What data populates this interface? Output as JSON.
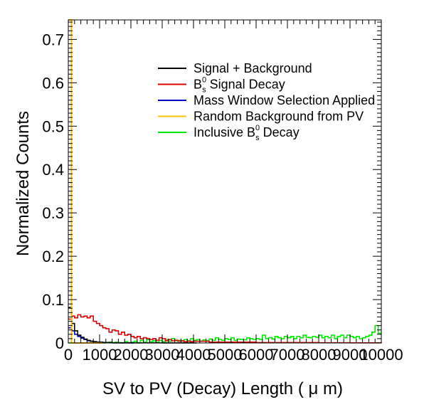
{
  "chart_data": {
    "type": "line",
    "xlabel": "SV to PV (Decay) Length ( μ m)",
    "ylabel": "Normalized Counts",
    "xlim": [
      0,
      10000
    ],
    "ylim": [
      0,
      0.745
    ],
    "xticks": [
      0,
      1000,
      2000,
      3000,
      4000,
      5000,
      6000,
      7000,
      8000,
      9000,
      10000
    ],
    "xtick_labels": [
      "0",
      "1000",
      "2000",
      "3000",
      "4000",
      "5000",
      "6000",
      "7000",
      "8000",
      "9000",
      "10000"
    ],
    "yticks": [
      0,
      0.1,
      0.2,
      0.3,
      0.4,
      0.5,
      0.6,
      0.7
    ],
    "ytick_labels": [
      "0",
      "0.1",
      "0.2",
      "0.3",
      "0.4",
      "0.5",
      "0.6",
      "0.7"
    ],
    "bin_width": 100,
    "grid": false,
    "legend_position": "top-right",
    "legend": [
      {
        "text": "Signal + Background",
        "color": "#000000"
      },
      {
        "text": "B",
        "sup": "0",
        "sub": "s",
        "rest": " Signal Decay",
        "color": "#e00000"
      },
      {
        "text": "Mass Window Selection Applied",
        "color": "#0000c8"
      },
      {
        "text": "Random Background from PV",
        "color": "#ffc000"
      },
      {
        "text": "Inclusive B",
        "sup": "0",
        "sub": "s",
        "rest": " Decay",
        "color": "#00ee00"
      }
    ],
    "series": [
      {
        "name": "Signal + Background",
        "color": "#000000",
        "x": [
          0,
          100,
          200,
          300,
          400,
          500,
          600,
          700,
          800,
          900,
          1000,
          1100,
          1200,
          1300,
          1400,
          1500,
          2000,
          3000,
          4000
        ],
        "values": [
          0.082,
          0.045,
          0.028,
          0.018,
          0.013,
          0.009,
          0.006,
          0.004,
          0.003,
          0.002,
          0.002,
          0.001,
          0.001,
          0.001,
          0.0005,
          0.0003,
          0.0002,
          0.0001,
          0.0
        ]
      },
      {
        "name": "B_s^0 Signal Decay",
        "color": "#e00000",
        "x": [
          0,
          100,
          200,
          300,
          400,
          500,
          600,
          700,
          800,
          900,
          1000,
          1100,
          1200,
          1300,
          1400,
          1500,
          1600,
          1700,
          1800,
          1900,
          2000,
          2100,
          2200,
          2300,
          2400,
          2500,
          2600,
          2700,
          2800,
          2900,
          3000,
          3100,
          3200,
          3300,
          3400,
          3500,
          3600,
          3700,
          3800,
          3900,
          4000,
          4500,
          5000,
          6000,
          7000,
          8000,
          9000,
          10000
        ],
        "values": [
          0.055,
          0.062,
          0.058,
          0.065,
          0.06,
          0.062,
          0.058,
          0.062,
          0.05,
          0.045,
          0.04,
          0.035,
          0.033,
          0.025,
          0.03,
          0.028,
          0.02,
          0.025,
          0.018,
          0.02,
          0.015,
          0.012,
          0.015,
          0.01,
          0.012,
          0.01,
          0.008,
          0.01,
          0.006,
          0.012,
          0.01,
          0.005,
          0.008,
          0.005,
          0.006,
          0.004,
          0.005,
          0.003,
          0.004,
          0.003,
          0.004,
          0.002,
          0.002,
          0.001,
          0.001,
          0.0005,
          0.0003,
          0.0
        ]
      },
      {
        "name": "Mass Window Selection Applied",
        "color": "#0000c8",
        "x": [
          0,
          100,
          200,
          300,
          400,
          500,
          600,
          700,
          800,
          900,
          1000,
          1100,
          1200,
          1300,
          1400,
          1500,
          2000
        ],
        "values": [
          0.035,
          0.028,
          0.02,
          0.015,
          0.011,
          0.008,
          0.005,
          0.004,
          0.003,
          0.002,
          0.0015,
          0.001,
          0.001,
          0.0005,
          0.0003,
          0.0002,
          0.0
        ]
      },
      {
        "name": "Random Background from PV",
        "color": "#ffc000",
        "x": [
          0,
          100,
          200,
          300,
          500,
          1000
        ],
        "values": [
          0.745,
          0.0,
          0.0,
          0.0,
          0.0,
          0.0
        ]
      },
      {
        "name": "Inclusive B_s^0 Decay",
        "color": "#00ee00",
        "x": [
          0,
          100,
          200,
          300,
          400,
          500,
          600,
          700,
          800,
          900,
          1000,
          1100,
          1200,
          1300,
          1400,
          1500,
          1600,
          1700,
          1800,
          1900,
          2000,
          2100,
          2200,
          2300,
          2400,
          2500,
          2600,
          2700,
          2800,
          2900,
          3000,
          3100,
          3200,
          3300,
          3400,
          3500,
          3600,
          3700,
          3800,
          3900,
          4000,
          4100,
          4200,
          4300,
          4400,
          4500,
          4600,
          4700,
          4800,
          4900,
          5000,
          5100,
          5200,
          5300,
          5400,
          5500,
          5600,
          5700,
          5800,
          5900,
          6000,
          6100,
          6200,
          6300,
          6400,
          6500,
          6600,
          6700,
          6800,
          6900,
          7000,
          7100,
          7200,
          7300,
          7400,
          7500,
          7600,
          7700,
          7800,
          7900,
          8000,
          8100,
          8200,
          8300,
          8400,
          8500,
          8600,
          8700,
          8800,
          8900,
          9000,
          9100,
          9200,
          9300,
          9400,
          9500,
          9600,
          9700,
          9800,
          9900
        ],
        "values": [
          0.0,
          0.0,
          0.0,
          0.0,
          0.0,
          0.0,
          0.0,
          0.0,
          0.001,
          0.0,
          0.002,
          0.0,
          0.001,
          0.002,
          0.0,
          0.002,
          0.001,
          0.0,
          0.003,
          0.0,
          0.002,
          0.004,
          0.0,
          0.006,
          0.002,
          0.008,
          0.003,
          0.005,
          0.002,
          0.006,
          0.003,
          0.008,
          0.004,
          0.01,
          0.005,
          0.006,
          0.004,
          0.008,
          0.005,
          0.01,
          0.006,
          0.008,
          0.004,
          0.007,
          0.005,
          0.009,
          0.006,
          0.012,
          0.008,
          0.006,
          0.01,
          0.008,
          0.012,
          0.006,
          0.009,
          0.008,
          0.007,
          0.012,
          0.01,
          0.008,
          0.01,
          0.008,
          0.018,
          0.01,
          0.012,
          0.009,
          0.015,
          0.012,
          0.01,
          0.015,
          0.012,
          0.015,
          0.01,
          0.015,
          0.012,
          0.018,
          0.013,
          0.012,
          0.015,
          0.013,
          0.018,
          0.012,
          0.015,
          0.012,
          0.018,
          0.01,
          0.015,
          0.018,
          0.012,
          0.018,
          0.015,
          0.012,
          0.015,
          0.01,
          0.012,
          0.015,
          0.018,
          0.025,
          0.04,
          0.022
        ]
      }
    ]
  }
}
